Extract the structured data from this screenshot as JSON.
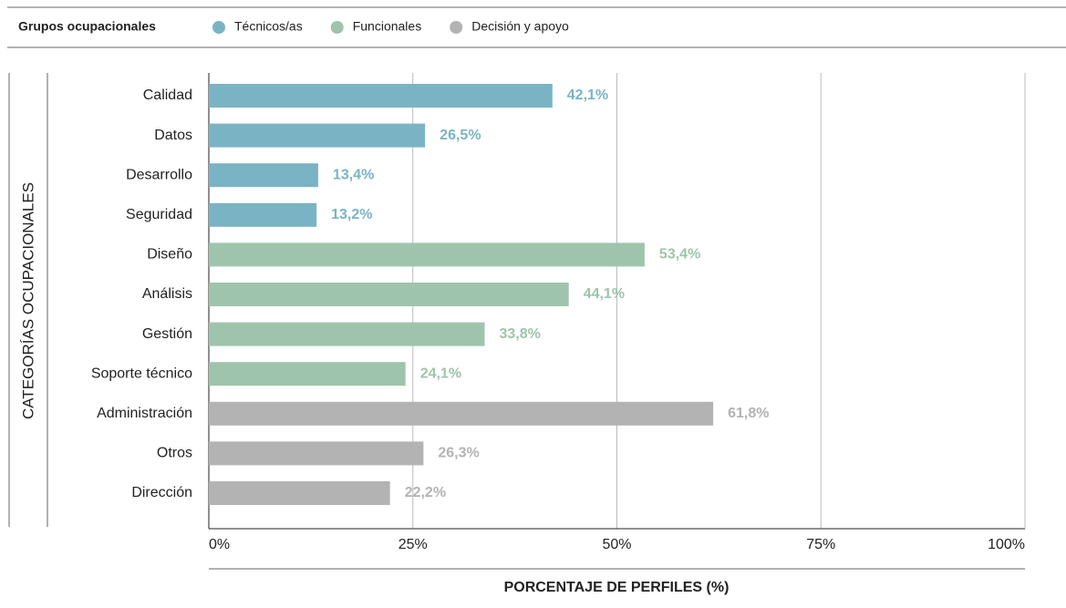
{
  "chart_data": {
    "type": "bar",
    "orientation": "horizontal",
    "legend_title": "Grupos ocupacionales",
    "ylabel": "CATEGORÍAS OCUPACIONALES",
    "xlabel": "PORCENTAJE DE PERFILES (%)",
    "categories": [
      "Calidad",
      "Datos",
      "Desarrollo",
      "Seguridad",
      "Diseño",
      "Análisis",
      "Gestión",
      "Soporte técnico",
      "Administración",
      "Otros",
      "Dirección"
    ],
    "series": [
      {
        "name": "Técnicos/as",
        "color": "#7ab4c4",
        "values": [
          42.1,
          26.5,
          13.4,
          13.2,
          null,
          null,
          null,
          null,
          null,
          null,
          null
        ],
        "value_labels": [
          "42,1%",
          "26,5%",
          "13,4%",
          "13,2%",
          null,
          null,
          null,
          null,
          null,
          null,
          null
        ]
      },
      {
        "name": "Funcionales",
        "color": "#9fc4ad",
        "values": [
          null,
          null,
          null,
          null,
          53.4,
          44.1,
          33.8,
          24.1,
          null,
          null,
          null
        ],
        "value_labels": [
          null,
          null,
          null,
          null,
          "53,4%",
          "44,1%",
          "33,8%",
          "24,1%",
          null,
          null,
          null
        ]
      },
      {
        "name": "Decisión y apoyo",
        "color": "#b3b3b3",
        "values": [
          null,
          null,
          null,
          null,
          null,
          null,
          null,
          null,
          61.8,
          26.3,
          22.2
        ],
        "value_labels": [
          null,
          null,
          null,
          null,
          null,
          null,
          null,
          null,
          "61,8%",
          "26,3%",
          "22,2%"
        ]
      }
    ],
    "xlim": [
      0,
      100
    ],
    "xticks": [
      {
        "value": 0,
        "label": "0%"
      },
      {
        "value": 25,
        "label": "25%"
      },
      {
        "value": 50,
        "label": "50%"
      },
      {
        "value": 75,
        "label": "75%"
      },
      {
        "value": 100,
        "label": "100%"
      }
    ],
    "grid": true
  }
}
